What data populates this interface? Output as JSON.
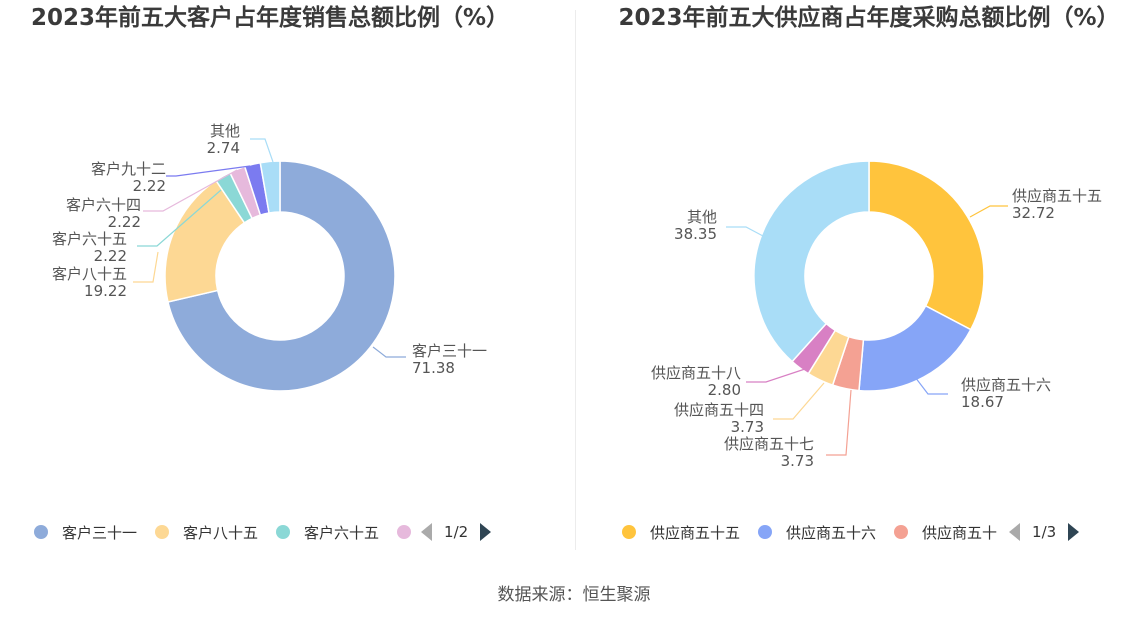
{
  "source_label": "数据来源：恒生聚源",
  "chart_data": [
    {
      "type": "pie",
      "title": "2023年前五大客户占年度销售总额比例（%）",
      "series": [
        {
          "name": "客户三十一",
          "value": 71.38,
          "color": "#8eabda"
        },
        {
          "name": "客户八十五",
          "value": 19.22,
          "color": "#fdd894"
        },
        {
          "name": "客户六十五",
          "value": 2.22,
          "color": "#8bd8d6"
        },
        {
          "name": "客户六十四",
          "value": 2.22,
          "color": "#e6b9dc"
        },
        {
          "name": "客户九十二",
          "value": 2.22,
          "color": "#7b7bf0"
        },
        {
          "name": "其他",
          "value": 2.74,
          "color": "#a9ddf7"
        }
      ],
      "legend_visible": [
        "客户三十一",
        "客户八十五",
        "客户六十五",
        ""
      ],
      "legend_colors": [
        "#8eabda",
        "#fdd894",
        "#8bd8d6",
        "#e6b9dc"
      ],
      "legend_page": "1/2"
    },
    {
      "type": "pie",
      "title": "2023年前五大供应商占年度采购总额比例（%）",
      "series": [
        {
          "name": "供应商五十五",
          "value": 32.72,
          "color": "#ffc43d"
        },
        {
          "name": "供应商五十六",
          "value": 18.67,
          "color": "#86a5f7"
        },
        {
          "name": "供应商五十七",
          "value": 3.73,
          "color": "#f4a193"
        },
        {
          "name": "供应商五十四",
          "value": 3.73,
          "color": "#fdd894"
        },
        {
          "name": "供应商五十八",
          "value": 2.8,
          "color": "#d880c4"
        },
        {
          "name": "其他",
          "value": 38.35,
          "color": "#a9ddf7"
        }
      ],
      "legend_visible": [
        "供应商五十五",
        "供应商五十六",
        "供应商五十"
      ],
      "legend_colors": [
        "#ffc43d",
        "#86a5f7",
        "#f4a193"
      ],
      "legend_page": "1/3"
    }
  ]
}
